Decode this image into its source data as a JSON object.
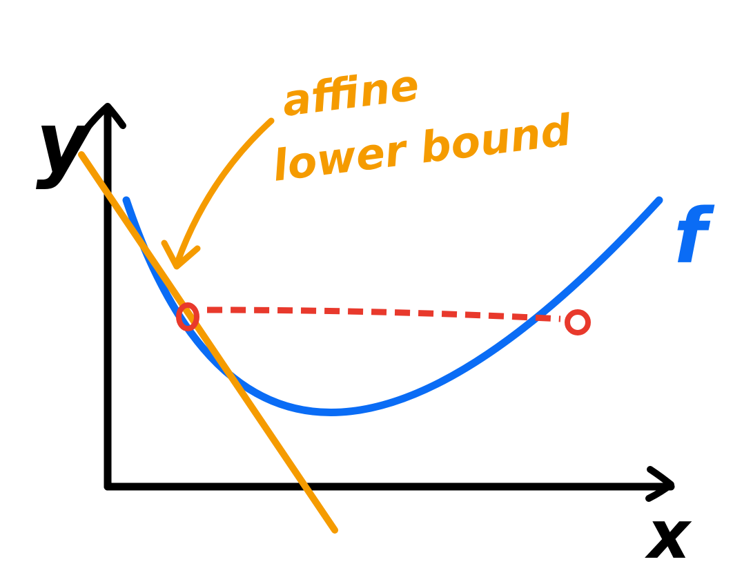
{
  "axes": {
    "y_label": "y",
    "x_label": "x"
  },
  "curve": {
    "label": "f"
  },
  "annotation": {
    "line1": "affine",
    "line2": "lower bound"
  },
  "colors": {
    "axis": "#000000",
    "curve": "#0a6cf5",
    "tangent": "#f59b00",
    "chord": "#e8392c",
    "annotation": "#f59b00"
  }
}
